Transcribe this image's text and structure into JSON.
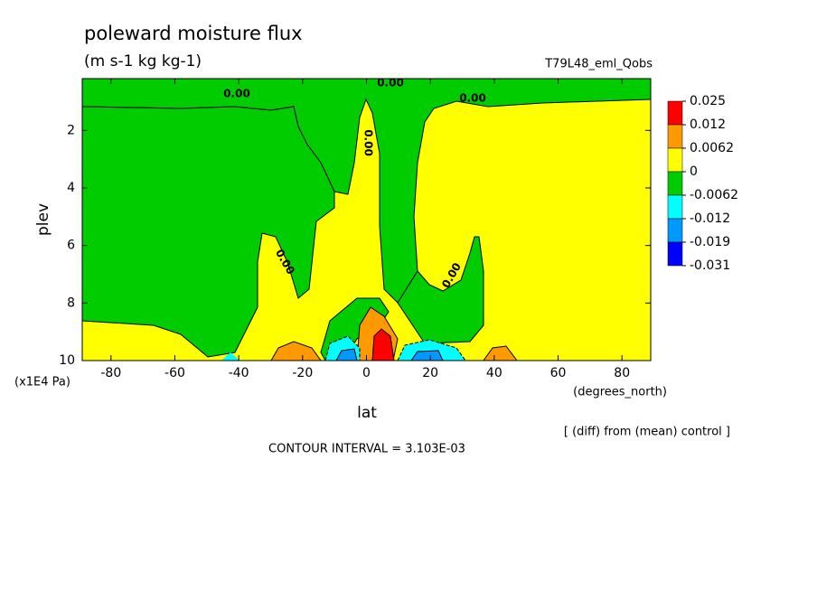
{
  "chart_data": {
    "type": "contour",
    "title": "poleward moisture flux",
    "subtitle": "(m s-1 kg kg-1)",
    "dataset": "T79L48_eml_Qobs",
    "xlabel": "lat",
    "x_units": "(degrees_north)",
    "ylabel": "plev",
    "y_units": "(x1E4 Pa)",
    "note": "[ (diff) from (mean) control ]",
    "contour_interval": "CONTOUR INTERVAL = 3.103E-03",
    "xlim": [
      -89,
      89
    ],
    "xticks": [
      -80,
      -60,
      -40,
      -20,
      0,
      20,
      40,
      60,
      80
    ],
    "ylim": [
      10,
      0.2
    ],
    "yticks": [
      2,
      4,
      6,
      8,
      10
    ],
    "contour_labels": [
      "0.00",
      "0.00",
      "0.00",
      "0.00",
      "0.00",
      "0.00"
    ],
    "levels": [
      0.025,
      0.012,
      0.0062,
      0,
      -0.0062,
      -0.012,
      -0.019,
      -0.031
    ],
    "level_colors": [
      "#ff0000",
      "#ff9900",
      "#ffff00",
      "#00cc00",
      "#00ffff",
      "#0099ff",
      "#0000ff"
    ]
  }
}
